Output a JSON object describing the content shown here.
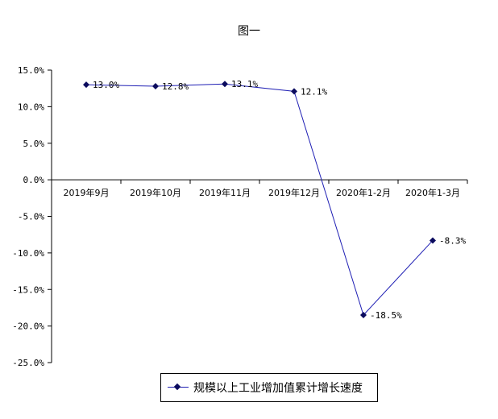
{
  "chart_data": {
    "type": "line",
    "title": "图一",
    "categories": [
      "2019年9月",
      "2019年10月",
      "2019年11月",
      "2019年12月",
      "2020年1-2月",
      "2020年1-3月"
    ],
    "series": [
      {
        "name": "规模以上工业增加值累计增长速度",
        "values": [
          13.0,
          12.8,
          13.1,
          12.1,
          -18.5,
          -8.3
        ],
        "labels": [
          "13.0%",
          "12.8%",
          "13.1%",
          "12.1%",
          "-18.5%",
          "-8.3%"
        ]
      }
    ],
    "ylim": [
      -25,
      15
    ],
    "yticks": [
      15,
      10,
      5,
      0,
      -5,
      -10,
      -15,
      -20,
      -25
    ],
    "ytick_labels": [
      "15.0%",
      "10.0%",
      "5.0%",
      "0.0%",
      "-5.0%",
      "-10.0%",
      "-15.0%",
      "-20.0%",
      "-25.0%"
    ],
    "line_color": "#1f1fb4",
    "marker_color": "#0b0b5e",
    "legend_position": "bottom",
    "grid": false
  }
}
